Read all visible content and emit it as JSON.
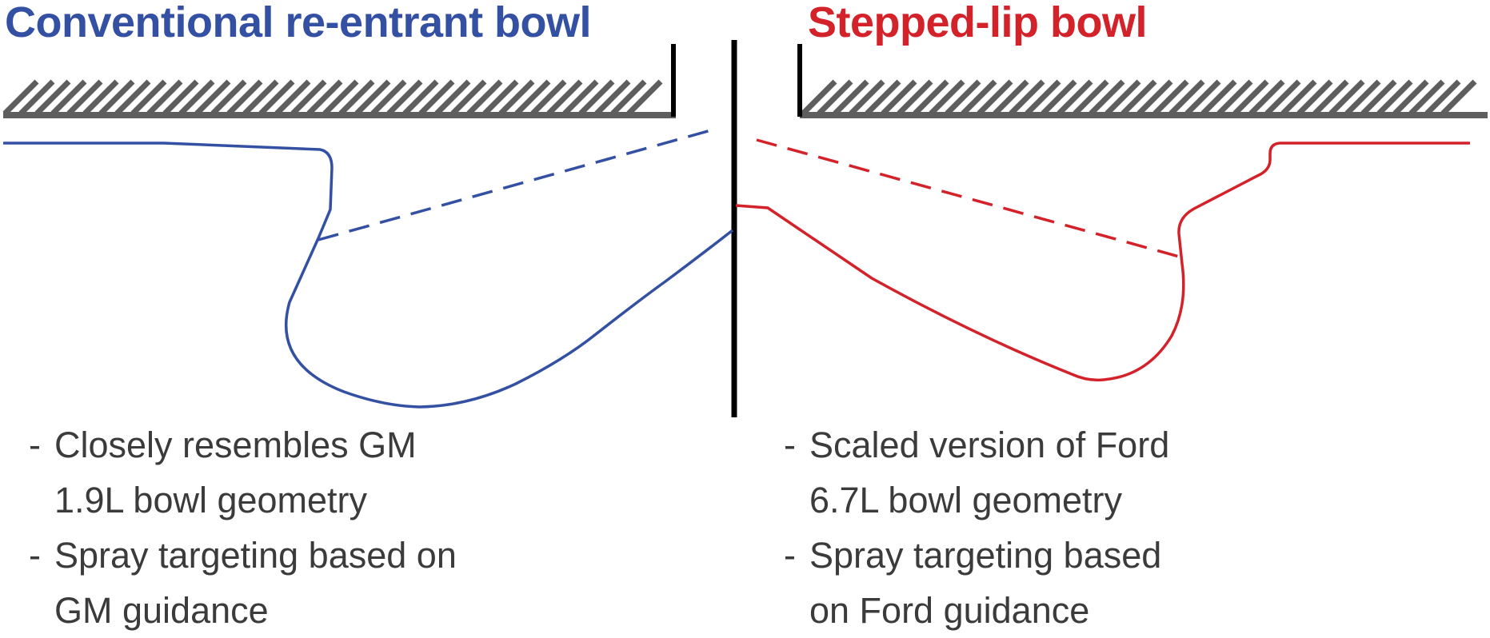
{
  "titles": {
    "left": "Conventional re-entrant bowl",
    "right": "Stepped-lip bowl"
  },
  "notes": {
    "left": [
      {
        "line1": "Closely resembles GM",
        "line2": "1.9L bowl geometry"
      },
      {
        "line1": "Spray targeting based on",
        "line2": "GM guidance"
      }
    ],
    "right": [
      {
        "line1": "Scaled version of Ford",
        "line2": "6.7L bowl geometry"
      },
      {
        "line1": "Spray targeting based",
        "line2": "on Ford guidance"
      }
    ]
  },
  "bullet_dash": "-",
  "colors": {
    "conventional": "#3450a3",
    "stepped": "#d3222a",
    "hatch": "#5e5e5e",
    "axis": "#000000",
    "text": "#3b3b3b"
  }
}
